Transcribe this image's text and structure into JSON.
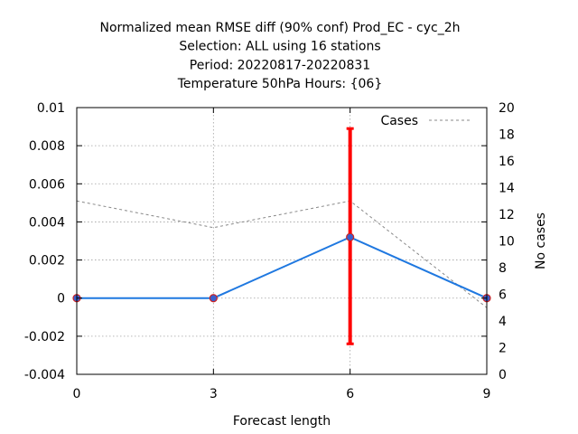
{
  "chart_data": {
    "type": "line",
    "title_lines": [
      "Normalized mean RMSE diff (90% conf) Prod_EC - cyc_2h",
      "Selection: ALL using    16 stations",
      "Period: 20220817-20220831",
      "Temperature 50hPa   Hours: {06}"
    ],
    "xlabel": "Forecast length",
    "ylabel": "",
    "y2label": "No cases",
    "x": [
      0,
      3,
      6,
      9
    ],
    "x_ticks": [
      "0",
      "3",
      "6",
      "9"
    ],
    "xlim": [
      0,
      9
    ],
    "ylim": [
      -0.004,
      0.01
    ],
    "y_ticks": [
      "-0.004",
      "-0.002",
      "0",
      "0.002",
      "0.004",
      "0.006",
      "0.008",
      "0.01"
    ],
    "y2lim": [
      0,
      20
    ],
    "y2_ticks": [
      "0",
      "2",
      "4",
      "6",
      "8",
      "10",
      "12",
      "14",
      "16",
      "18",
      "20"
    ],
    "grid": true,
    "legend_position": "top-right",
    "series": [
      {
        "values": [
          0,
          0,
          0.0032,
          0
        ],
        "color": "#1f78e0",
        "marker_color": "#3a5fcd",
        "marker_outline": "#cc2222",
        "axis": "left"
      },
      {
        "name": "Cases",
        "values": [
          13,
          11,
          13,
          5
        ],
        "color": "#888888",
        "style": "dashed",
        "axis": "right"
      }
    ],
    "error_bars": [
      {
        "x": 6,
        "low": -0.0024,
        "high": 0.0089,
        "color": "#ff0000"
      }
    ]
  }
}
